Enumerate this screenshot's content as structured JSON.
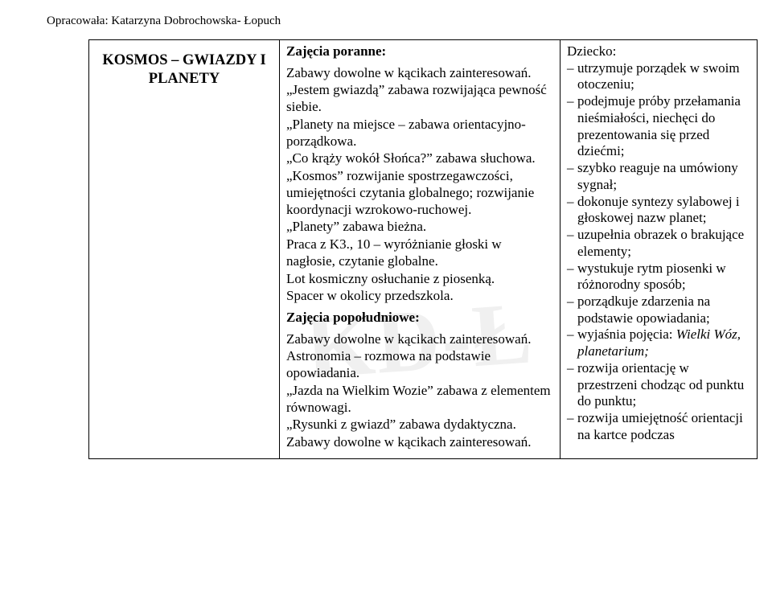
{
  "author_line": "Opracowała: Katarzyna Dobrochowska- Łopuch",
  "watermark": "KD-Ł",
  "left_title_l1": "KOSMOS – GWIAZDY I",
  "left_title_l2": "PLANETY",
  "mid": {
    "morning_head": "Zajęcia poranne:",
    "m1": "Zabawy dowolne w kącikach zainteresowań.",
    "m2": "„Jestem gwiazdą” zabawa rozwijająca pewność siebie.",
    "m3": "„Planety na miejsce – zabawa orientacyjno-porządkowa.",
    "m4": "„Co krąży wokół Słońca?” zabawa słuchowa.",
    "m5": "„Kosmos” rozwijanie spostrzegawczości, umiejętności czytania globalnego; rozwijanie koordynacji wzrokowo-ruchowej.",
    "m6": "„Planety” zabawa bieżna.",
    "m7": "Praca z K3., 10 – wyróżnianie głoski w nagłosie, czytanie globalne.",
    "m8": "Lot kosmiczny osłuchanie z piosenką.",
    "m9": "Spacer w okolicy przedszkola.",
    "afternoon_head": "Zajęcia popołudniowe:",
    "a1": "Zabawy dowolne w kącikach zainteresowań.",
    "a2": "Astronomia – rozmowa na podstawie opowiadania.",
    "a3": "„Jazda na Wielkim Wozie” zabawa z elementem równowagi.",
    "a4": "„Rysunki z gwiazd” zabawa dydaktyczna.",
    "a5": "Zabawy dowolne w kącikach zainteresowań."
  },
  "right": {
    "head": "Dziecko:",
    "items": [
      {
        "t": "utrzymuje porządek w swoim otoczeniu;"
      },
      {
        "t": "podejmuje próby przełamania nieśmiałości, niechęci do prezentowania się przed dziećmi;"
      },
      {
        "t": "szybko reaguje na umówiony sygnał;"
      },
      {
        "t": "dokonuje syntezy sylabowej i głoskowej nazw planet;"
      },
      {
        "t": "uzupełnia obrazek o brakujące elementy;"
      },
      {
        "t": "wystukuje rytm piosenki w różnorodny sposób;"
      },
      {
        "t": "porządkuje zdarzenia na podstawie opowiadania;"
      },
      {
        "pre": "wyjaśnia pojęcia: ",
        "it": "Wielki Wóz, planetarium;"
      },
      {
        "t": "rozwija orientację w przestrzeni chodząc od punktu do punktu;"
      },
      {
        "t": "rozwija umiejętność orientacji na kartce podczas"
      }
    ]
  }
}
